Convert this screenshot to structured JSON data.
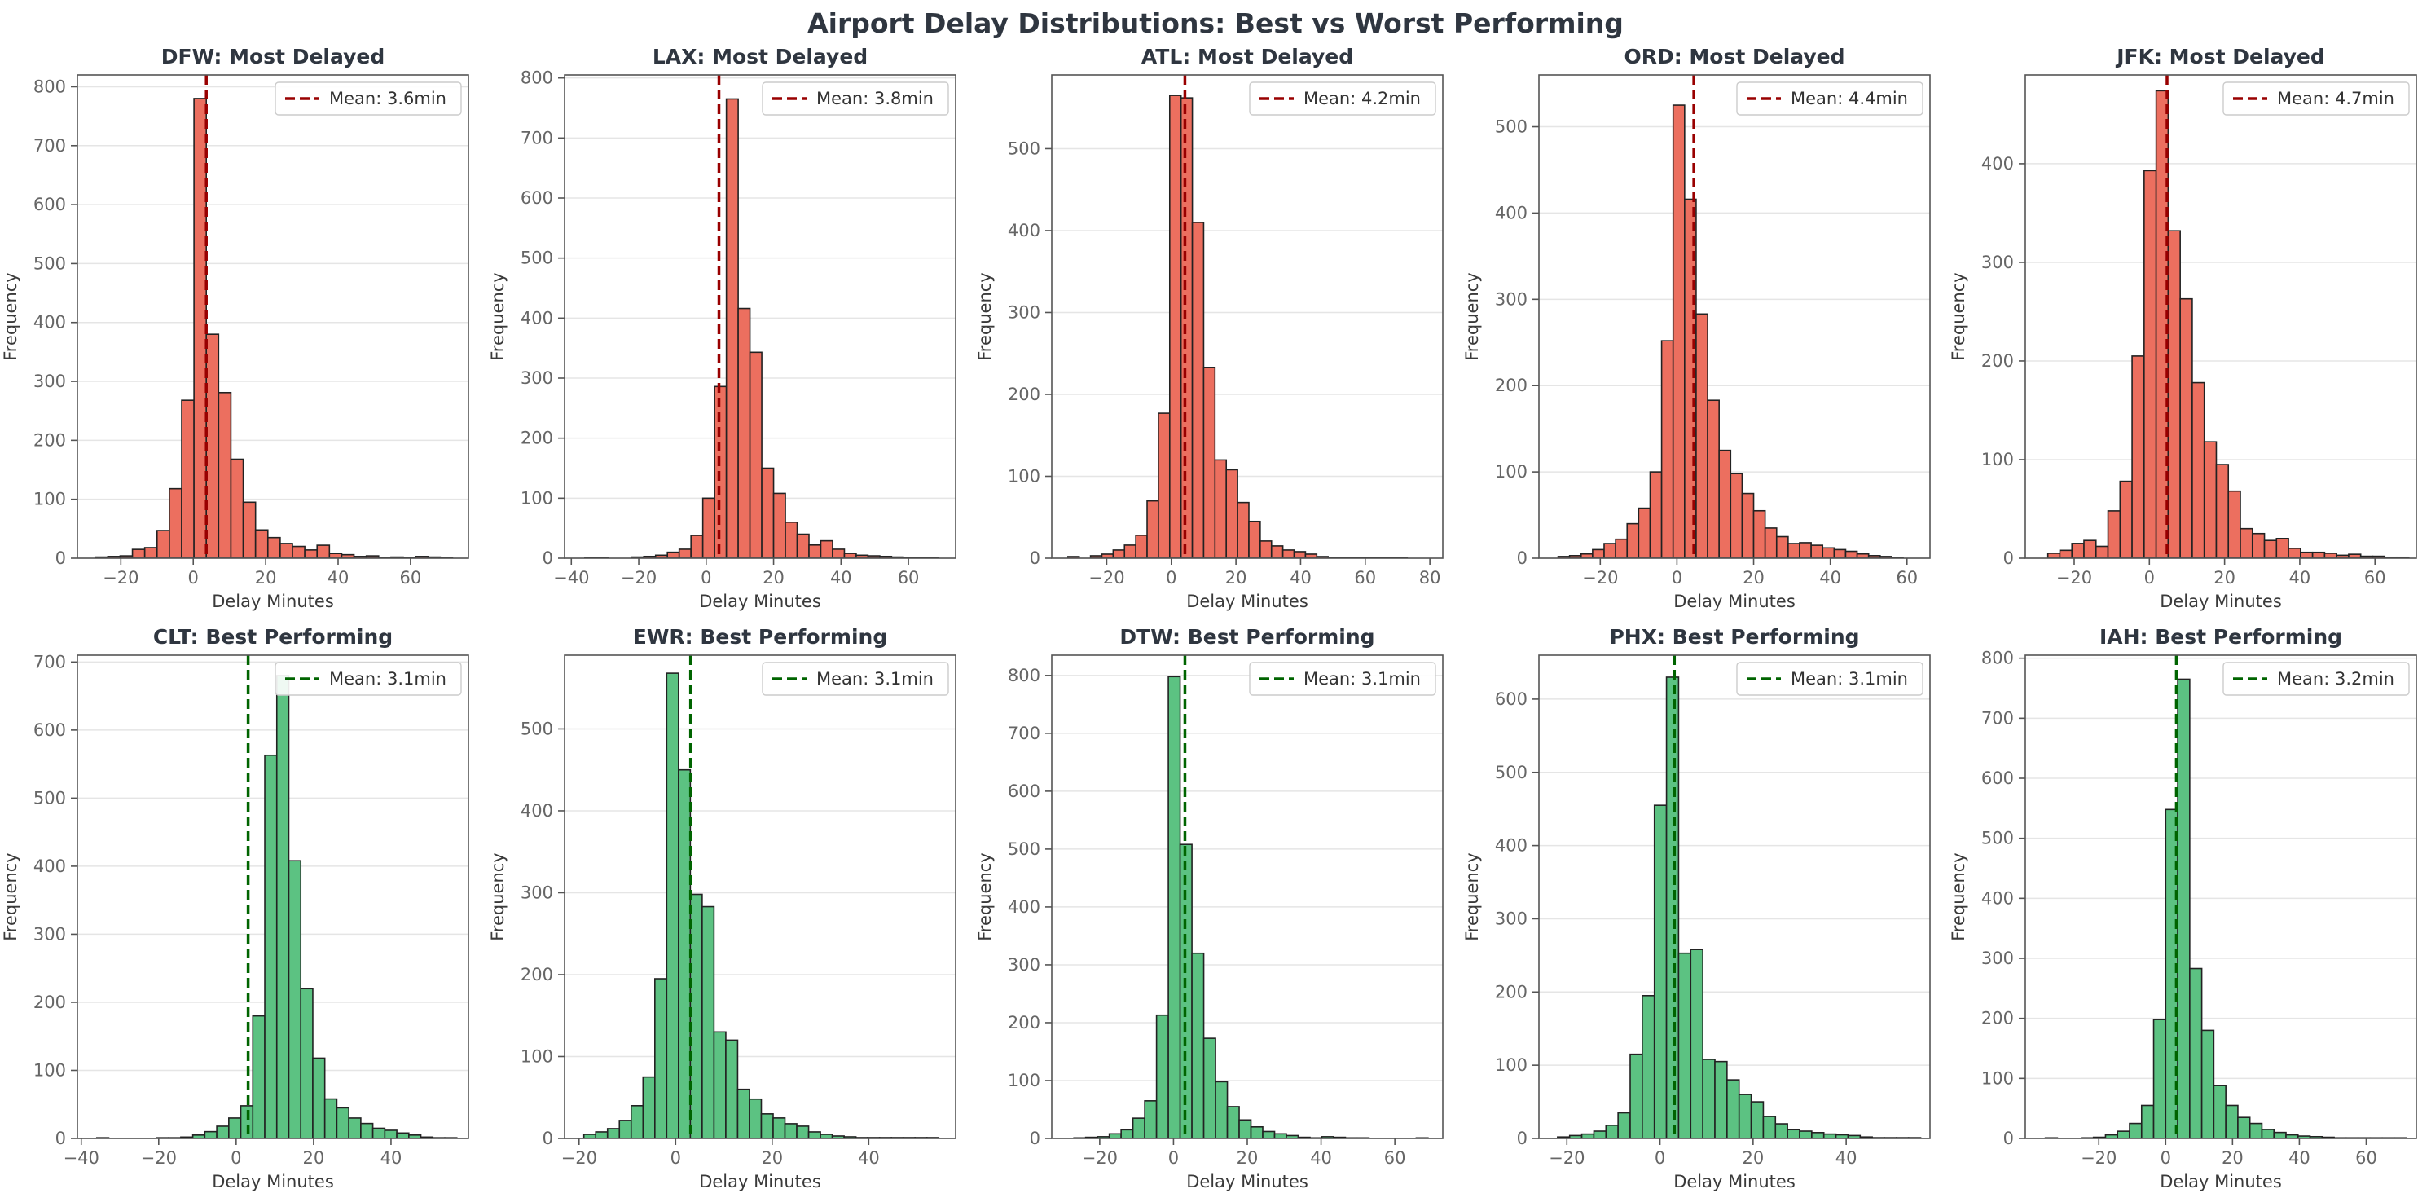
{
  "title": "Airport Delay Distributions: Best vs Worst Performing",
  "colors": {
    "worst_bar": "#ec6f5f",
    "worst_mean": "#990000",
    "best_bar": "#5cc282",
    "best_mean": "#006400",
    "bar_edge": "#222222",
    "grid": "#e5e5e5",
    "axis": "#555555"
  },
  "chart_data": [
    {
      "type": "bar",
      "title": "DFW: Most Delayed",
      "group": "worst",
      "xlabel": "Delay Minutes",
      "ylabel": "Frequency",
      "xlim": [
        -32,
        76
      ],
      "ylim": [
        0,
        820
      ],
      "xticks": [
        -20,
        0,
        20,
        40,
        60
      ],
      "yticks": [
        0,
        100,
        200,
        300,
        400,
        500,
        600,
        700,
        800
      ],
      "bin_start": -27,
      "bin_width": 3.4,
      "values": [
        2,
        3,
        4,
        15,
        18,
        47,
        118,
        268,
        780,
        380,
        281,
        168,
        95,
        48,
        35,
        25,
        20,
        14,
        22,
        8,
        6,
        3,
        4,
        1,
        2,
        1,
        3,
        2,
        1
      ],
      "mean": 3.6,
      "legend": "Mean: 3.6min"
    },
    {
      "type": "bar",
      "title": "LAX: Most Delayed",
      "group": "worst",
      "xlabel": "Delay Minutes",
      "ylabel": "Frequency",
      "xlim": [
        -42,
        74
      ],
      "ylim": [
        0,
        805
      ],
      "xticks": [
        -40,
        -20,
        0,
        20,
        40,
        60
      ],
      "yticks": [
        0,
        100,
        200,
        300,
        400,
        500,
        600,
        700,
        800
      ],
      "bin_start": -36,
      "bin_width": 3.5,
      "values": [
        1,
        1,
        0,
        0,
        2,
        3,
        5,
        10,
        15,
        38,
        100,
        286,
        765,
        416,
        343,
        150,
        108,
        60,
        40,
        22,
        29,
        15,
        8,
        5,
        4,
        3,
        2,
        1,
        1,
        1
      ],
      "mean": 3.8,
      "legend": "Mean: 3.8min"
    },
    {
      "type": "bar",
      "title": "ATL: Most Delayed",
      "group": "worst",
      "xlabel": "Delay Minutes",
      "ylabel": "Frequency",
      "xlim": [
        -37,
        84
      ],
      "ylim": [
        0,
        590
      ],
      "xticks": [
        -20,
        0,
        20,
        40,
        60,
        80
      ],
      "yticks": [
        0,
        100,
        200,
        300,
        400,
        500
      ],
      "bin_start": -32,
      "bin_width": 3.5,
      "values": [
        2,
        0,
        3,
        5,
        10,
        16,
        28,
        70,
        177,
        565,
        562,
        410,
        233,
        120,
        108,
        68,
        45,
        21,
        15,
        10,
        8,
        5,
        2,
        1,
        1,
        1,
        1,
        1,
        1,
        1
      ],
      "mean": 4.2,
      "legend": "Mean: 4.2min"
    },
    {
      "type": "bar",
      "title": "ORD: Most Delayed",
      "group": "worst",
      "xlabel": "Delay Minutes",
      "ylabel": "Frequency",
      "xlim": [
        -36,
        66
      ],
      "ylim": [
        0,
        560
      ],
      "xticks": [
        -20,
        0,
        20,
        40,
        60
      ],
      "yticks": [
        0,
        100,
        200,
        300,
        400,
        500
      ],
      "bin_start": -31,
      "bin_width": 3.0,
      "values": [
        2,
        3,
        5,
        10,
        17,
        22,
        40,
        58,
        100,
        252,
        525,
        416,
        283,
        183,
        125,
        98,
        75,
        55,
        35,
        25,
        17,
        18,
        15,
        12,
        10,
        8,
        5,
        3,
        2,
        1
      ],
      "mean": 4.4,
      "legend": "Mean: 4.4min"
    },
    {
      "type": "bar",
      "title": "JFK: Most Delayed",
      "group": "worst",
      "xlabel": "Delay Minutes",
      "ylabel": "Frequency",
      "xlim": [
        -33,
        71
      ],
      "ylim": [
        0,
        490
      ],
      "xticks": [
        -20,
        0,
        20,
        40,
        60
      ],
      "yticks": [
        0,
        100,
        200,
        300,
        400
      ],
      "bin_start": -27,
      "bin_width": 3.2,
      "values": [
        5,
        8,
        15,
        18,
        12,
        48,
        78,
        205,
        393,
        474,
        332,
        263,
        178,
        118,
        95,
        68,
        30,
        25,
        18,
        20,
        10,
        6,
        6,
        5,
        3,
        4,
        2,
        2,
        1,
        1
      ],
      "mean": 4.7,
      "legend": "Mean: 4.7min"
    },
    {
      "type": "bar",
      "title": "CLT: Best Performing",
      "group": "best",
      "xlabel": "Delay Minutes",
      "ylabel": "Frequency",
      "xlim": [
        -41,
        60
      ],
      "ylim": [
        0,
        710
      ],
      "xticks": [
        -40,
        -20,
        0,
        20,
        40
      ],
      "yticks": [
        0,
        100,
        200,
        300,
        400,
        500,
        600,
        700
      ],
      "bin_start": -36,
      "bin_width": 3.1,
      "values": [
        1,
        0,
        0,
        0,
        0,
        1,
        1,
        2,
        5,
        10,
        18,
        30,
        48,
        180,
        563,
        680,
        408,
        220,
        118,
        58,
        45,
        30,
        22,
        15,
        12,
        8,
        5,
        2,
        1,
        1
      ],
      "mean": 3.1,
      "legend": "Mean: 3.1min"
    },
    {
      "type": "bar",
      "title": "EWR: Best Performing",
      "group": "best",
      "xlabel": "Delay Minutes",
      "ylabel": "Frequency",
      "xlim": [
        -23,
        58
      ],
      "ylim": [
        0,
        590
      ],
      "xticks": [
        -20,
        0,
        20,
        40
      ],
      "yticks": [
        0,
        100,
        200,
        300,
        400,
        500
      ],
      "bin_start": -19,
      "bin_width": 2.45,
      "values": [
        5,
        8,
        12,
        22,
        40,
        75,
        195,
        568,
        450,
        298,
        283,
        130,
        120,
        60,
        48,
        30,
        25,
        18,
        15,
        8,
        5,
        3,
        2,
        1,
        1,
        1,
        1,
        1,
        1,
        1
      ],
      "mean": 3.1,
      "legend": "Mean: 3.1min"
    },
    {
      "type": "bar",
      "title": "DTW: Best Performing",
      "group": "best",
      "xlabel": "Delay Minutes",
      "ylabel": "Frequency",
      "xlim": [
        -33,
        73
      ],
      "ylim": [
        0,
        835
      ],
      "xticks": [
        -20,
        0,
        20,
        40,
        60
      ],
      "yticks": [
        0,
        100,
        200,
        300,
        400,
        500,
        600,
        700,
        800
      ],
      "bin_start": -27,
      "bin_width": 3.2,
      "values": [
        1,
        2,
        3,
        8,
        15,
        35,
        65,
        213,
        798,
        508,
        320,
        173,
        98,
        55,
        32,
        20,
        12,
        8,
        5,
        2,
        1,
        3,
        2,
        1,
        1,
        0,
        0,
        0,
        0,
        1
      ],
      "mean": 3.1,
      "legend": "Mean: 3.1min"
    },
    {
      "type": "bar",
      "title": "PHX: Best Performing",
      "group": "best",
      "xlabel": "Delay Minutes",
      "ylabel": "Frequency",
      "xlim": [
        -26,
        58
      ],
      "ylim": [
        0,
        660
      ],
      "xticks": [
        -20,
        0,
        20,
        40
      ],
      "yticks": [
        0,
        100,
        200,
        300,
        400,
        500,
        600
      ],
      "bin_start": -22,
      "bin_width": 2.6,
      "values": [
        2,
        4,
        6,
        10,
        18,
        35,
        115,
        195,
        455,
        630,
        253,
        258,
        108,
        105,
        80,
        60,
        50,
        30,
        20,
        12,
        10,
        8,
        6,
        5,
        4,
        2,
        1,
        1,
        1,
        1
      ],
      "mean": 3.1,
      "legend": "Mean: 3.1min"
    },
    {
      "type": "bar",
      "title": "IAH: Best Performing",
      "group": "best",
      "xlabel": "Delay Minutes",
      "ylabel": "Frequency",
      "xlim": [
        -42,
        75
      ],
      "ylim": [
        0,
        805
      ],
      "xticks": [
        -20,
        0,
        20,
        40,
        60
      ],
      "yticks": [
        0,
        100,
        200,
        300,
        400,
        500,
        600,
        700,
        800
      ],
      "bin_start": -36,
      "bin_width": 3.6,
      "values": [
        1,
        0,
        0,
        1,
        2,
        6,
        12,
        25,
        55,
        198,
        548,
        765,
        283,
        180,
        88,
        55,
        35,
        25,
        15,
        10,
        6,
        4,
        3,
        2,
        1,
        1,
        1,
        1,
        1,
        1
      ],
      "mean": 3.2,
      "legend": "Mean: 3.2min"
    }
  ]
}
